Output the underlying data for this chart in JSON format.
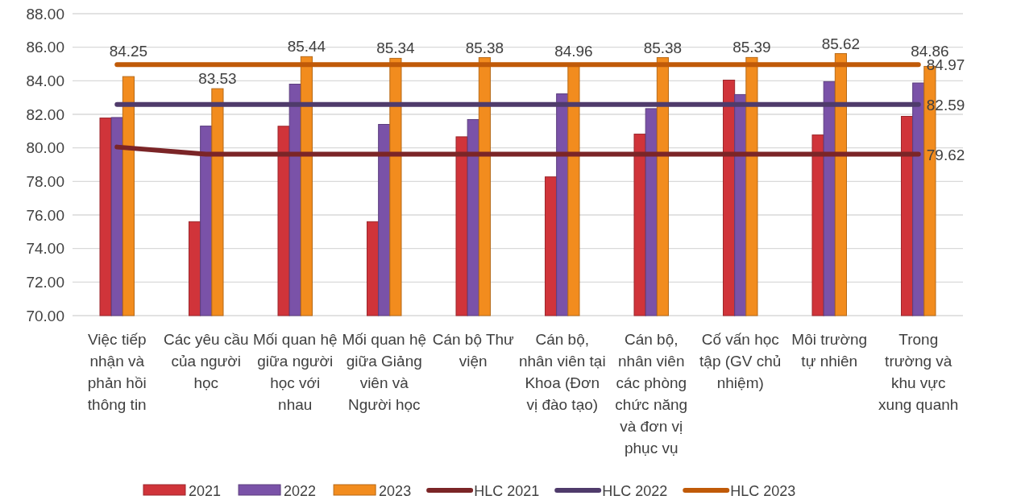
{
  "chart_data": {
    "type": "bar",
    "categories": [
      "Việc tiếp nhận và phản hồi thông tin",
      "Các yêu cầu của người học",
      "Mối quan hệ giữa người học với nhau",
      "Mối quan hệ giữa Giảng viên và Người học",
      "Cán bộ Thư viện",
      "Cán bộ, nhân viên tại Khoa (Đơn vị đào tạo)",
      "Cán bộ, nhân viên các phòng chức năng và đơn vị phục vụ",
      "Cố vấn học tập (GV chủ nhiệm)",
      "Môi trường tự nhiên",
      "Trong trường và khu vực xung quanh"
    ],
    "series": [
      {
        "name": "2021",
        "type": "bar",
        "color": "#d0343a",
        "values": [
          81.78,
          75.6,
          81.29,
          75.6,
          80.66,
          78.27,
          80.82,
          84.04,
          80.77,
          81.88
        ]
      },
      {
        "name": "2022",
        "type": "bar",
        "color": "#7a52a8",
        "values": [
          81.81,
          81.3,
          83.8,
          81.4,
          81.69,
          83.22,
          82.34,
          83.18,
          83.95,
          83.87
        ]
      },
      {
        "name": "2023",
        "type": "bar",
        "color": "#f28c1e",
        "values": [
          84.25,
          83.53,
          85.44,
          85.34,
          85.38,
          84.96,
          85.38,
          85.39,
          85.62,
          84.86
        ],
        "value_labels": [
          "84.25",
          "83.53",
          "85.44",
          "85.34",
          "85.38",
          "84.96",
          "85.38",
          "85.39",
          "85.62",
          "84.86"
        ]
      },
      {
        "name": "HLC 2021",
        "type": "line",
        "color": "#7b2527",
        "values": [
          80.05,
          79.62,
          79.62,
          79.62,
          79.62,
          79.62,
          79.62,
          79.62,
          79.62,
          79.62
        ],
        "value_labels": [
          null,
          null,
          null,
          null,
          null,
          null,
          null,
          null,
          null,
          "79.62"
        ]
      },
      {
        "name": "HLC 2022",
        "type": "line",
        "color": "#4f3b6b",
        "values": [
          82.59,
          82.59,
          82.59,
          82.59,
          82.59,
          82.59,
          82.59,
          82.59,
          82.59,
          82.59
        ],
        "value_labels": [
          null,
          null,
          null,
          null,
          null,
          null,
          null,
          null,
          null,
          "82.59"
        ]
      },
      {
        "name": "HLC 2023",
        "type": "line",
        "color": "#c05a08",
        "values": [
          84.97,
          84.97,
          84.97,
          84.97,
          84.97,
          84.97,
          84.97,
          84.97,
          84.97,
          84.97
        ],
        "value_labels": [
          null,
          null,
          null,
          null,
          null,
          null,
          null,
          null,
          null,
          "84.97"
        ]
      }
    ],
    "ylim": [
      70,
      88
    ],
    "yticks": [
      {
        "value": 70,
        "label": "70.00"
      },
      {
        "value": 72,
        "label": "72.00"
      },
      {
        "value": 74,
        "label": "74.00"
      },
      {
        "value": 76,
        "label": "76.00"
      },
      {
        "value": 78,
        "label": "78.00"
      },
      {
        "value": 80,
        "label": "80.00"
      },
      {
        "value": 82,
        "label": "82.00"
      },
      {
        "value": 84,
        "label": "84.00"
      },
      {
        "value": 86,
        "label": "86.00"
      },
      {
        "value": 88,
        "label": "88.00"
      }
    ],
    "grid": "y",
    "legend": "bottom",
    "marker": "none",
    "line_style": "solid"
  }
}
